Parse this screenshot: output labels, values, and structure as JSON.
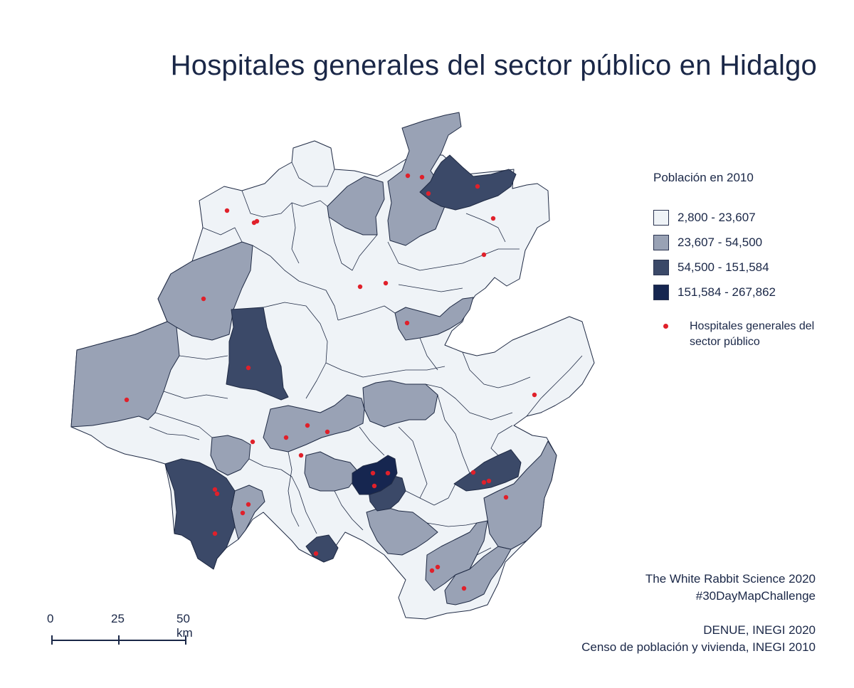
{
  "title": "Hospitales generales del sector público en Hidalgo",
  "legend": {
    "title": "Población en 2010",
    "classes": [
      {
        "label": "2,800 - 23,607",
        "color": "#eff3f7"
      },
      {
        "label": "23,607 - 54,500",
        "color": "#99a2b5"
      },
      {
        "label": "54,500 - 151,584",
        "color": "#3b4968"
      },
      {
        "label": "151,584 - 267,862",
        "color": "#162650"
      }
    ],
    "point_label": "Hospitales generales del sector público",
    "point_color": "#e0202a"
  },
  "credits": {
    "line1": "The White Rabbit Science 2020",
    "line2": "#30DayMapChallenge",
    "line3": "DENUE,  INEGI 2020",
    "line4": "Censo de población y vivienda,  INEGI 2010"
  },
  "scale": {
    "label_0": "0",
    "label_25": "25",
    "label_50": "50 km"
  }
}
